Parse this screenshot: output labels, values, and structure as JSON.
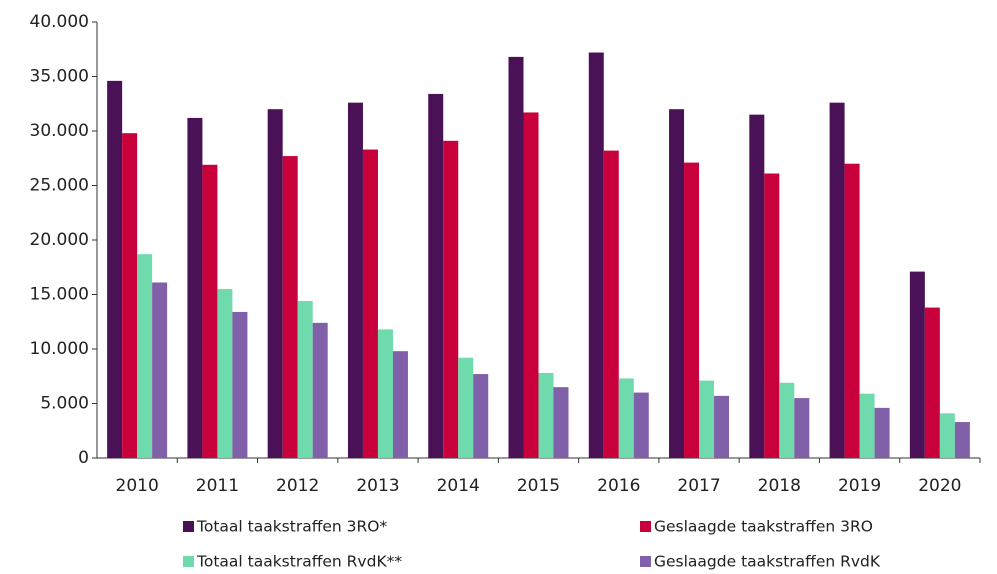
{
  "chart_data": {
    "type": "bar",
    "categories": [
      "2010",
      "2011",
      "2012",
      "2013",
      "2014",
      "2015",
      "2016",
      "2017",
      "2018",
      "2019",
      "2020"
    ],
    "series": [
      {
        "name": "Totaal taakstraffen 3RO*",
        "color": "#4b1157",
        "values": [
          34600,
          31200,
          32000,
          32600,
          33400,
          36800,
          37200,
          32000,
          31500,
          32600,
          17100
        ]
      },
      {
        "name": "Geslaagde taakstraffen 3RO",
        "color": "#c8003c",
        "values": [
          29800,
          26900,
          27700,
          28300,
          29100,
          31700,
          28200,
          27100,
          26100,
          27000,
          13800
        ]
      },
      {
        "name": "Totaal taakstraffen RvdK**",
        "color": "#6fdaac",
        "values": [
          18700,
          15500,
          14400,
          11800,
          9200,
          7800,
          7300,
          7100,
          6900,
          5900,
          4100
        ]
      },
      {
        "name": "Geslaagde taakstraffen RvdK",
        "color": "#8060a8",
        "values": [
          16100,
          13400,
          12400,
          9800,
          7700,
          6500,
          6000,
          5700,
          5500,
          4600,
          3300
        ]
      }
    ],
    "ylim": [
      0,
      40000
    ],
    "yticks": [
      0,
      {
        "value": 5000,
        "label": "5.000"
      },
      {
        "value": 10000,
        "label": "10.000"
      },
      {
        "value": 15000,
        "label": "15.000"
      },
      {
        "value": 20000,
        "label": "20.000"
      },
      {
        "value": 25000,
        "label": "25.000"
      },
      {
        "value": 30000,
        "label": "30.000"
      },
      {
        "value": 35000,
        "label": "35.000"
      },
      {
        "value": 40000,
        "label": "40.000"
      }
    ],
    "grid": false,
    "legend": "bottom"
  }
}
